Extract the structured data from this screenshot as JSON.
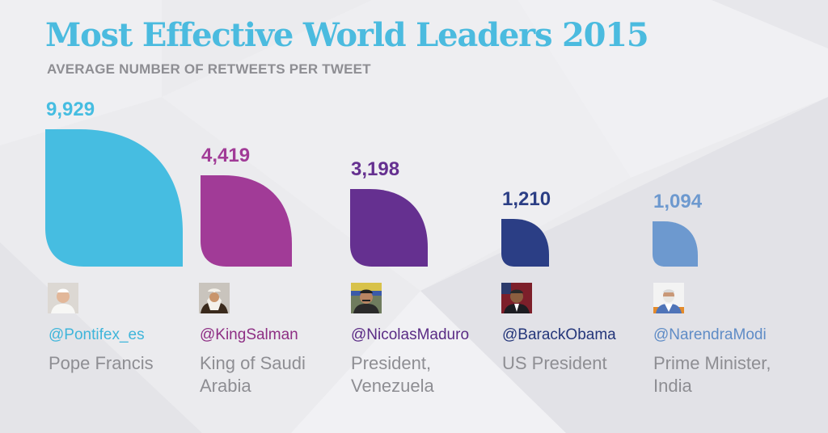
{
  "header": {
    "title": "Most Effective World Leaders 2015",
    "subtitle": "AVERAGE NUMBER OF RETWEETS PER TWEET"
  },
  "colors": {
    "title": "#4bbbdf",
    "background": "#ebebee",
    "text_grey": "#8e8e93"
  },
  "chart_data": {
    "type": "bar",
    "title": "Most Effective World Leaders 2015",
    "subtitle": "AVERAGE NUMBER OF RETWEETS PER TWEET",
    "value_labels": [
      "9,929",
      "4,419",
      "3,198",
      "1,210",
      "1,094"
    ],
    "categories": [
      "@Pontifex_es",
      "@KingSalman",
      "@NicolasMaduro",
      "@BarackObama",
      "@NarendraModi"
    ],
    "values": [
      9929,
      4419,
      3198,
      1210,
      1094
    ],
    "colors": [
      "#46bde1",
      "#a13b97",
      "#653090",
      "#2b3e85",
      "#6d99cf"
    ],
    "mark_shape": "leaf"
  },
  "leaders": [
    {
      "handle": "@Pontifex_es",
      "role": "Pope Francis",
      "avatar_icon": "pope-francis-avatar-icon"
    },
    {
      "handle": "@KingSalman",
      "role": "King of Saudi Arabia",
      "avatar_icon": "king-salman-avatar-icon"
    },
    {
      "handle": "@NicolasMaduro",
      "role": "President, Venezuela",
      "avatar_icon": "nicolas-maduro-avatar-icon"
    },
    {
      "handle": "@BarackObama",
      "role": "US President",
      "avatar_icon": "barack-obama-avatar-icon"
    },
    {
      "handle": "@NarendraModi",
      "role": "Prime Minister, India",
      "avatar_icon": "narendra-modi-avatar-icon"
    }
  ]
}
